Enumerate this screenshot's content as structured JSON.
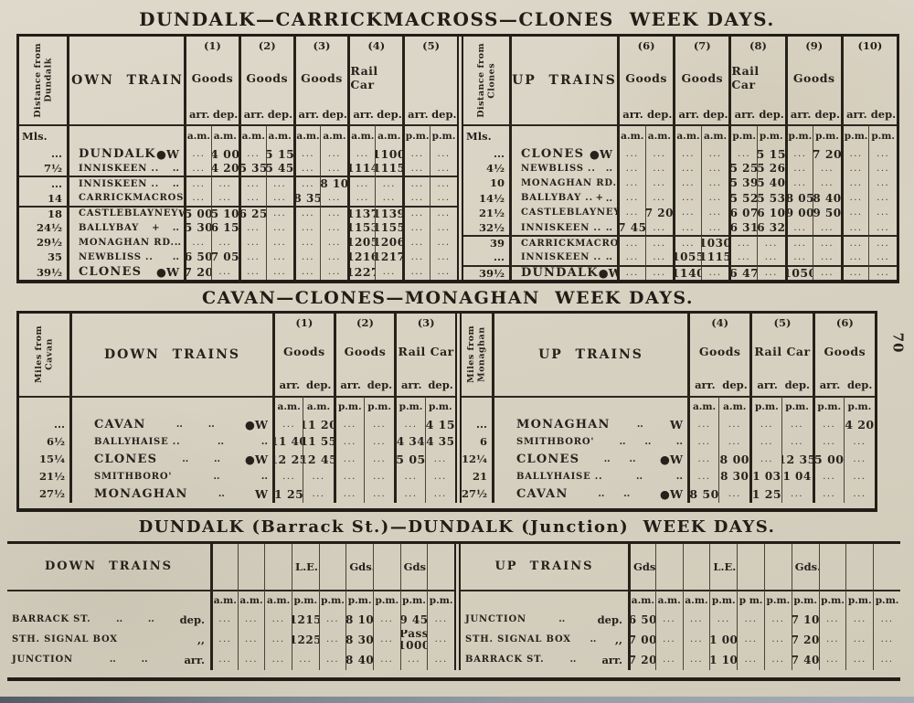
{
  "page": {
    "number": "70"
  },
  "section1": {
    "title": "DUNDALK—CARRICKMACROSS—CLONES  WEEK DAYS.",
    "left": {
      "rot": "Distance from\nDundalk",
      "dir": "DOWN  TRAINS",
      "mls": "Mls.",
      "arr": "arr.",
      "dep": "dep.",
      "cols": [
        {
          "num": "(1)",
          "label": "Goods"
        },
        {
          "num": "(2)",
          "label": "Goods"
        },
        {
          "num": "(3)",
          "label": "Goods"
        },
        {
          "num": "(4)",
          "label": "Rail Car"
        },
        {
          "num": "(5)",
          "label": ""
        }
      ],
      "units": [
        "a.m.",
        "a.m.",
        "a.m.",
        "a.m.",
        "a.m.",
        "a.m.",
        "a.m.",
        "a.m.",
        "p.m.",
        "p.m."
      ],
      "rows": [
        {
          "m": "...",
          "n": "DUNDALK",
          "l": "",
          "s": "●W",
          "b": true,
          "c": [
            "...",
            "4 00",
            "...",
            "5 15",
            "...",
            "...",
            "...",
            "1100",
            "...",
            "..."
          ]
        },
        {
          "m": "7½",
          "n": "INNISKEEN ..",
          "l": "",
          "s": "..",
          "c": [
            "...",
            "4 20",
            "5 35",
            "5 45",
            "...",
            "...",
            "1114",
            "1115",
            "...",
            "..."
          ]
        },
        {
          "m": "...",
          "n": "INNISKEEN ..",
          "l": "",
          "s": "..",
          "sep": true,
          "c": [
            "...",
            "...",
            "...",
            "...",
            "...",
            "8 10",
            "...",
            "...",
            "...",
            "..."
          ]
        },
        {
          "m": "14",
          "n": "CARRICKMACROSS",
          "l": "",
          "s": "..",
          "c": [
            "...",
            "...",
            "...",
            "...",
            "8 35",
            "...",
            "...",
            "...",
            "...",
            "..."
          ]
        },
        {
          "m": "18",
          "n": "CASTLEBLAYNEY",
          "l": "",
          "s": "W",
          "sep": true,
          "c": [
            "5 00",
            "5 10",
            "6 25",
            "...",
            "...",
            "...",
            "1137",
            "1139",
            "...",
            "..."
          ]
        },
        {
          "m": "24½",
          "n": "BALLYBAY",
          "l": "+",
          "s": "..",
          "c": [
            "5 30",
            "6 15",
            "...",
            "...",
            "...",
            "...",
            "1153",
            "1155",
            "...",
            "..."
          ]
        },
        {
          "m": "29½",
          "n": "MONAGHAN RD.",
          "l": "",
          "s": "..",
          "c": [
            "...",
            "...",
            "...",
            "...",
            "...",
            "...",
            "1205",
            "1206",
            "...",
            "..."
          ]
        },
        {
          "m": "35",
          "n": "NEWBLISS ..",
          "l": "",
          "s": "..",
          "c": [
            "6 50",
            "7 05",
            "...",
            "...",
            "...",
            "...",
            "1216",
            "1217",
            "...",
            "..."
          ]
        },
        {
          "m": "39½",
          "n": "CLONES",
          "l": "",
          "s": "●W",
          "b": true,
          "c": [
            "7 20",
            "...",
            "...",
            "...",
            "...",
            "...",
            "1227",
            "...",
            "...",
            "..."
          ]
        }
      ]
    },
    "right": {
      "rot": "Distance from\nClones",
      "dir": "UP  TRAINS",
      "mls": "Mls.",
      "arr": "arr.",
      "dep": "dep.",
      "cols": [
        {
          "num": "(6)",
          "label": "Goods"
        },
        {
          "num": "(7)",
          "label": "Goods"
        },
        {
          "num": "(8)",
          "label": "Rail Car"
        },
        {
          "num": "(9)",
          "label": "Goods"
        },
        {
          "num": "(10)",
          "label": ""
        }
      ],
      "units": [
        "a.m.",
        "a.m.",
        "a.m.",
        "a.m.",
        "p.m.",
        "p.m.",
        "p.m.",
        "p.m.",
        "p.m.",
        "p.m."
      ],
      "rows": [
        {
          "m": "...",
          "n": "CLONES",
          "l": "",
          "s": "●W",
          "b": true,
          "c": [
            "...",
            "...",
            "...",
            "...",
            "...",
            "5 15",
            "...",
            "7 20",
            "...",
            "..."
          ]
        },
        {
          "m": "4½",
          "n": "NEWBLISS ..",
          "l": "",
          "s": "..",
          "c": [
            "...",
            "...",
            "...",
            "...",
            "5 25",
            "5 26",
            "...",
            "...",
            "...",
            "..."
          ]
        },
        {
          "m": "10",
          "n": "MONAGHAN RD.",
          "l": "",
          "s": "..",
          "c": [
            "...",
            "...",
            "...",
            "...",
            "5 39",
            "5 40",
            "...",
            "...",
            "...",
            "..."
          ]
        },
        {
          "m": "14½",
          "n": "BALLYBAY ..",
          "l": "+",
          "s": "..",
          "c": [
            "...",
            "...",
            "...",
            "...",
            "5 52",
            "5 53",
            "8 05",
            "8 40",
            "...",
            "..."
          ]
        },
        {
          "m": "21½",
          "n": "CASTLEBLAYNEY",
          "l": "",
          "s": "W",
          "c": [
            "...",
            "7 20",
            "...",
            "...",
            "6 07",
            "6 10",
            "9 00",
            "9 50",
            "...",
            "..."
          ]
        },
        {
          "m": "32½",
          "n": "INNISKEEN ..",
          "l": "",
          "s": "..",
          "c": [
            "7 45",
            "...",
            "...",
            "...",
            "6 31",
            "6 32",
            "...",
            "...",
            "...",
            "..."
          ]
        },
        {
          "m": "39",
          "n": "CARRICKMACROSS",
          "l": "",
          "s": "..",
          "sep": true,
          "c": [
            "...",
            "...",
            "...",
            "1030",
            "...",
            "...",
            "...",
            "...",
            "...",
            "..."
          ]
        },
        {
          "m": "...",
          "n": "INNISKEEN ..",
          "l": "",
          "s": "..",
          "c": [
            "...",
            "...",
            "1055",
            "1115",
            "...",
            "...",
            "...",
            "...",
            "...",
            "..."
          ]
        },
        {
          "m": "39½",
          "n": "DUNDALK",
          "l": "",
          "s": "●W",
          "b": true,
          "sep": true,
          "c": [
            "...",
            "...",
            "1140",
            "...",
            "6 47",
            "...",
            "1050",
            "...",
            "...",
            "..."
          ]
        }
      ]
    }
  },
  "section2": {
    "title": "CAVAN—CLONES—MONAGHAN  WEEK DAYS.",
    "left": {
      "rot": "Miles from\nCavan",
      "dir": "DOWN  TRAINS",
      "mls": "",
      "arr": "arr.",
      "dep": "dep.",
      "cols": [
        {
          "num": "(1)",
          "label": "Goods"
        },
        {
          "num": "(2)",
          "label": "Goods"
        },
        {
          "num": "(3)",
          "label": "Rail Car"
        }
      ],
      "units": [
        "a.m.",
        "a.m.",
        "p.m.",
        "p.m.",
        "p.m.",
        "p.m."
      ],
      "rows": [
        {
          "m": "...",
          "n": "CAVAN",
          "l": "..        ..",
          "s": "●W",
          "b": true,
          "c": [
            "...",
            "11 20",
            "...",
            "...",
            "...",
            "4 15"
          ]
        },
        {
          "m": "6½",
          "n": "BALLYHAISE ..",
          "l": "..",
          "s": "..",
          "c": [
            "11 40",
            "11 55",
            "...",
            "...",
            "4 34",
            "4 35"
          ]
        },
        {
          "m": "15¼",
          "n": "CLONES",
          "l": "..        ..",
          "s": "●W",
          "b": true,
          "c": [
            "12 25",
            "12 45",
            "...",
            "...",
            "5 05",
            "..."
          ]
        },
        {
          "m": "21½",
          "n": "SMITHBORO'",
          "l": "..",
          "s": "..",
          "c": [
            "...",
            "...",
            "...",
            "...",
            "...",
            "..."
          ]
        },
        {
          "m": "27½",
          "n": "MONAGHAN",
          "l": "..",
          "s": "W",
          "b": true,
          "c": [
            "1 25",
            "...",
            "...",
            "...",
            "...",
            "..."
          ]
        }
      ]
    },
    "right": {
      "rot": "Miles from\nMonaghan",
      "dir": "UP  TRAINS",
      "mls": "",
      "arr": "arr.",
      "dep": "dep.",
      "cols": [
        {
          "num": "(4)",
          "label": "Goods"
        },
        {
          "num": "(5)",
          "label": "Rail Car"
        },
        {
          "num": "(6)",
          "label": "Goods"
        }
      ],
      "units": [
        "a.m.",
        "a.m.",
        "p.m.",
        "p.m.",
        "p.m.",
        "p.m."
      ],
      "rows": [
        {
          "m": "...",
          "n": "MONAGHAN",
          "l": "..",
          "s": "W",
          "b": true,
          "c": [
            "...",
            "...",
            "...",
            "...",
            "...",
            "4 20"
          ]
        },
        {
          "m": "6",
          "n": "SMITHBORO'",
          "l": "..      ..",
          "s": "..",
          "c": [
            "...",
            "...",
            "...",
            "...",
            "...",
            "..."
          ]
        },
        {
          "m": "12¼",
          "n": "CLONES",
          "l": "..      ..",
          "s": "●W",
          "b": true,
          "c": [
            "...",
            "8 00",
            "...",
            "12 35",
            "5 00",
            "..."
          ]
        },
        {
          "m": "21",
          "n": "BALLYHAISE ..",
          "l": "..",
          "s": "..",
          "c": [
            "...",
            "8 30",
            "1 03",
            "1 04",
            "...",
            "..."
          ]
        },
        {
          "m": "27½",
          "n": "CAVAN",
          "l": "..      ..",
          "s": "●W",
          "b": true,
          "c": [
            "8 50",
            "...",
            "1 25",
            "...",
            "...",
            "..."
          ]
        }
      ]
    }
  },
  "section3": {
    "title": "DUNDALK (Barrack St.)—DUNDALK (Junction)  WEEK DAYS.",
    "left": {
      "dir": "DOWN  TRAINS",
      "colheads": [
        "",
        "",
        "",
        "L.E.",
        "",
        "Gds.",
        "",
        "Gds.",
        ""
      ],
      "units": [
        "a.m.",
        "a.m.",
        "a.m.",
        "p.m.",
        "p.m.",
        "p.m.",
        "p.m.",
        "p.m.",
        "p.m."
      ],
      "rows": [
        {
          "n": "BARRACK ST.",
          "l": "..        ..",
          "s": "dep.",
          "c": [
            "...",
            "...",
            "...",
            "1215",
            "...",
            "8 10",
            "...",
            "9 45",
            "..."
          ]
        },
        {
          "n": "STH. SIGNAL BOX",
          "l": "",
          "s": ",,",
          "c": [
            "...",
            "...",
            "...",
            "1225",
            "...",
            "8 30",
            "...",
            "Pass\n1000",
            "..."
          ]
        },
        {
          "n": "JUNCTION",
          "l": "..        ..",
          "s": "arr.",
          "c": [
            "...",
            "...",
            "...",
            "...",
            "...",
            "8 40",
            "...",
            "...",
            "..."
          ]
        }
      ]
    },
    "right": {
      "dir": "UP  TRAINS",
      "colheads": [
        "Gds.",
        "",
        "",
        "L.E.",
        "",
        "",
        "Gds.",
        "",
        "",
        ""
      ],
      "units": [
        "a.m.",
        "a.m.",
        "a.m.",
        "p.m.",
        "p m.",
        "p.m.",
        "p.m.",
        "p.m.",
        "p.m.",
        "p.m."
      ],
      "rows": [
        {
          "n": "JUNCTION",
          "l": "..",
          "s": "dep.",
          "c": [
            "6 50",
            "...",
            "...",
            "...",
            "...",
            "...",
            "7 10",
            "...",
            "...",
            "..."
          ]
        },
        {
          "n": "STH. SIGNAL BOX",
          "l": "..",
          "s": ",,",
          "c": [
            "7 00",
            "...",
            "...",
            "1 00",
            "...",
            "...",
            "7 20",
            "...",
            "...",
            "..."
          ]
        },
        {
          "n": "BARRACK ST.",
          "l": "..",
          "s": "arr.",
          "c": [
            "7 20",
            "...",
            "...",
            "1 10",
            "...",
            "...",
            "7 40",
            "...",
            "...",
            "..."
          ]
        }
      ]
    }
  }
}
